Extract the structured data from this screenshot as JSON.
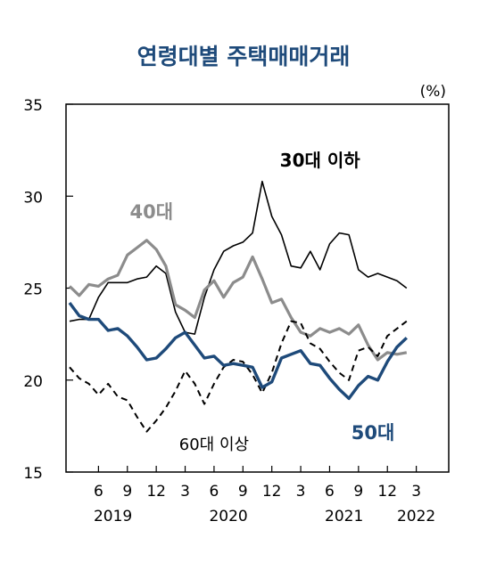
{
  "chart_data": {
    "type": "line",
    "title": "연령대별 주택매매거래",
    "unit": "(%)",
    "ylim": [
      15,
      35
    ],
    "yticks": [
      15,
      20,
      25,
      30,
      35
    ],
    "x_range": [
      1,
      40
    ],
    "xticks": [
      {
        "x": 4,
        "label": "6"
      },
      {
        "x": 7,
        "label": "9"
      },
      {
        "x": 10,
        "label": "12"
      },
      {
        "x": 13,
        "label": "3"
      },
      {
        "x": 16,
        "label": "6"
      },
      {
        "x": 19,
        "label": "9"
      },
      {
        "x": 22,
        "label": "12"
      },
      {
        "x": 25,
        "label": "3"
      },
      {
        "x": 28,
        "label": "6"
      },
      {
        "x": 31,
        "label": "9"
      },
      {
        "x": 34,
        "label": "12"
      },
      {
        "x": 37,
        "label": "3"
      }
    ],
    "year_labels": [
      {
        "x": 5.5,
        "label": "2019"
      },
      {
        "x": 17.5,
        "label": "2020"
      },
      {
        "x": 29.5,
        "label": "2021"
      },
      {
        "x": 37,
        "label": "2022"
      }
    ],
    "series": [
      {
        "name": "30대 이하",
        "color": "#000000",
        "style": "solid",
        "label_pos": {
          "x": 27,
          "y": 31.6
        },
        "points": [
          [
            1,
            23.2
          ],
          [
            2,
            23.3
          ],
          [
            3,
            23.3
          ],
          [
            4,
            24.5
          ],
          [
            5,
            25.3
          ],
          [
            6,
            25.3
          ],
          [
            7,
            25.3
          ],
          [
            8,
            25.5
          ],
          [
            9,
            25.6
          ],
          [
            10,
            26.2
          ],
          [
            11,
            25.8
          ],
          [
            12,
            23.7
          ],
          [
            13,
            22.6
          ],
          [
            14,
            22.5
          ],
          [
            15,
            24.5
          ],
          [
            16,
            26
          ],
          [
            17,
            27
          ],
          [
            18,
            27.3
          ],
          [
            19,
            27.5
          ],
          [
            20,
            28
          ],
          [
            21,
            30.8
          ],
          [
            22,
            28.9
          ],
          [
            23,
            27.9
          ],
          [
            24,
            26.2
          ],
          [
            25,
            26.1
          ],
          [
            26,
            27
          ],
          [
            27,
            26
          ],
          [
            28,
            27.4
          ],
          [
            29,
            28
          ],
          [
            30,
            27.9
          ],
          [
            31,
            26
          ],
          [
            32,
            25.6
          ],
          [
            33,
            25.8
          ],
          [
            34,
            25.6
          ],
          [
            35,
            25.4
          ],
          [
            36,
            25
          ]
        ]
      },
      {
        "name": "40대",
        "color": "#8c8c8c",
        "style": "solid",
        "label_pos": {
          "x": 9.5,
          "y": 28.8
        },
        "points": [
          [
            1,
            25.1
          ],
          [
            2,
            24.6
          ],
          [
            3,
            25.2
          ],
          [
            4,
            25.1
          ],
          [
            5,
            25.5
          ],
          [
            6,
            25.7
          ],
          [
            7,
            26.8
          ],
          [
            8,
            27.2
          ],
          [
            9,
            27.6
          ],
          [
            10,
            27.1
          ],
          [
            11,
            26.2
          ],
          [
            12,
            24.1
          ],
          [
            13,
            23.8
          ],
          [
            14,
            23.4
          ],
          [
            15,
            24.9
          ],
          [
            16,
            25.4
          ],
          [
            17,
            24.5
          ],
          [
            18,
            25.3
          ],
          [
            19,
            25.6
          ],
          [
            20,
            26.7
          ],
          [
            21,
            25.5
          ],
          [
            22,
            24.2
          ],
          [
            23,
            24.4
          ],
          [
            24,
            23.4
          ],
          [
            25,
            22.6
          ],
          [
            26,
            22.4
          ],
          [
            27,
            22.8
          ],
          [
            28,
            22.6
          ],
          [
            29,
            22.8
          ],
          [
            30,
            22.5
          ],
          [
            31,
            23
          ],
          [
            32,
            21.9
          ],
          [
            33,
            21.1
          ],
          [
            34,
            21.5
          ],
          [
            35,
            21.4
          ],
          [
            36,
            21.5
          ]
        ]
      },
      {
        "name": "50대",
        "color": "#1e4a7a",
        "style": "solid",
        "label_pos": {
          "x": 32.5,
          "y": 16.8
        },
        "points": [
          [
            1,
            24.2
          ],
          [
            2,
            23.5
          ],
          [
            3,
            23.3
          ],
          [
            4,
            23.3
          ],
          [
            5,
            22.7
          ],
          [
            6,
            22.8
          ],
          [
            7,
            22.4
          ],
          [
            8,
            21.8
          ],
          [
            9,
            21.1
          ],
          [
            10,
            21.2
          ],
          [
            11,
            21.7
          ],
          [
            12,
            22.3
          ],
          [
            13,
            22.6
          ],
          [
            14,
            21.9
          ],
          [
            15,
            21.2
          ],
          [
            16,
            21.3
          ],
          [
            17,
            20.8
          ],
          [
            18,
            20.9
          ],
          [
            19,
            20.8
          ],
          [
            20,
            20.7
          ],
          [
            21,
            19.6
          ],
          [
            22,
            19.9
          ],
          [
            23,
            21.2
          ],
          [
            24,
            21.4
          ],
          [
            25,
            21.6
          ],
          [
            26,
            20.9
          ],
          [
            27,
            20.8
          ],
          [
            28,
            20.1
          ],
          [
            29,
            19.5
          ],
          [
            30,
            19
          ],
          [
            31,
            19.7
          ],
          [
            32,
            20.2
          ],
          [
            33,
            20
          ],
          [
            34,
            21
          ],
          [
            35,
            21.8
          ],
          [
            36,
            22.3
          ]
        ]
      },
      {
        "name": "60대 이상",
        "color": "#000000",
        "style": "dashed",
        "label_pos": {
          "x": 16,
          "y": 16.2
        },
        "points": [
          [
            1,
            20.7
          ],
          [
            2,
            20.1
          ],
          [
            3,
            19.8
          ],
          [
            4,
            19.2
          ],
          [
            5,
            19.8
          ],
          [
            6,
            19.1
          ],
          [
            7,
            18.9
          ],
          [
            8,
            18
          ],
          [
            9,
            17.2
          ],
          [
            10,
            17.8
          ],
          [
            11,
            18.5
          ],
          [
            12,
            19.4
          ],
          [
            13,
            20.5
          ],
          [
            14,
            19.8
          ],
          [
            15,
            18.7
          ],
          [
            16,
            19.8
          ],
          [
            17,
            20.7
          ],
          [
            18,
            21.1
          ],
          [
            19,
            21
          ],
          [
            20,
            20.3
          ],
          [
            21,
            19.3
          ],
          [
            22,
            20.4
          ],
          [
            23,
            22
          ],
          [
            24,
            23.2
          ],
          [
            25,
            23.1
          ],
          [
            26,
            22
          ],
          [
            27,
            21.7
          ],
          [
            28,
            21
          ],
          [
            29,
            20.4
          ],
          [
            30,
            20
          ],
          [
            31,
            21.6
          ],
          [
            32,
            21.8
          ],
          [
            33,
            21.3
          ],
          [
            34,
            22.4
          ],
          [
            35,
            22.8
          ],
          [
            36,
            23.2
          ]
        ]
      }
    ]
  }
}
